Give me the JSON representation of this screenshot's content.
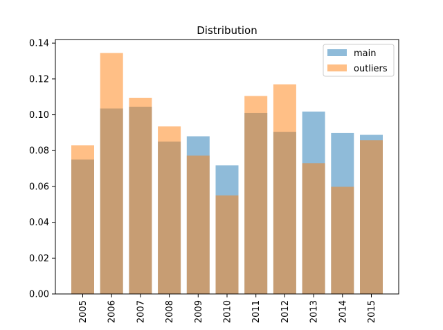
{
  "chart_data": {
    "type": "bar",
    "title": "Distribution",
    "xlabel": "",
    "ylabel": "",
    "categories": [
      "2005",
      "2006",
      "2007",
      "2008",
      "2009",
      "2010",
      "2011",
      "2012",
      "2013",
      "2014",
      "2015"
    ],
    "series": [
      {
        "name": "main",
        "color": "#1f77b4",
        "values": [
          0.075,
          0.1035,
          0.1045,
          0.085,
          0.088,
          0.0718,
          0.101,
          0.0905,
          0.1018,
          0.0898,
          0.0888
        ]
      },
      {
        "name": "outliers",
        "color": "#ff7f0e",
        "values": [
          0.083,
          0.1345,
          0.1095,
          0.0935,
          0.0772,
          0.055,
          0.1105,
          0.117,
          0.073,
          0.0598,
          0.0858
        ]
      }
    ],
    "ylim": [
      0,
      0.142
    ],
    "yticks": [
      "0.00",
      "0.02",
      "0.04",
      "0.06",
      "0.08",
      "0.10",
      "0.12",
      "0.14"
    ],
    "grid": false,
    "legend_position": "upper-right",
    "bar_alpha": 0.5
  }
}
